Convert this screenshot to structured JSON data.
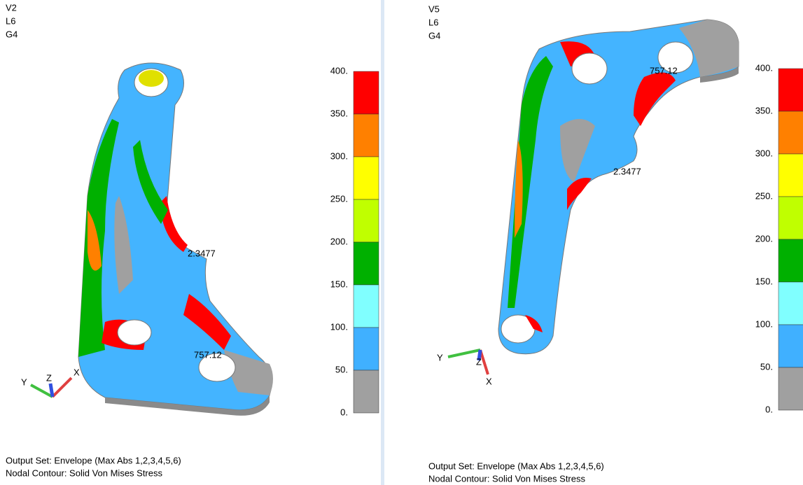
{
  "panels": [
    {
      "header": [
        "V2",
        "L6",
        "G4"
      ],
      "legend": {
        "labels": [
          "400.",
          "350.",
          "300.",
          "250.",
          "200.",
          "150.",
          "100.",
          "50.",
          "0."
        ],
        "colors": [
          "#ff0000",
          "#ff8000",
          "#ffff00",
          "#c0ff00",
          "#00b000",
          "#80ffff",
          "#40b0ff",
          "#a0a0a0"
        ]
      },
      "min_label": "2.3477",
      "max_label": "757.12",
      "triad": [
        "X",
        "Y",
        "Z"
      ],
      "footer": [
        "Output Set: Envelope (Max Abs 1,2,3,4,5,6)",
        "Nodal Contour: Solid Von Mises Stress"
      ]
    },
    {
      "header": [
        "V5",
        "L6",
        "G4"
      ],
      "legend": {
        "labels": [
          "400.",
          "350.",
          "300.",
          "250.",
          "200.",
          "150.",
          "100.",
          "50.",
          "0."
        ],
        "colors": [
          "#ff0000",
          "#ff8000",
          "#ffff00",
          "#c0ff00",
          "#00b000",
          "#80ffff",
          "#40b0ff",
          "#a0a0a0"
        ]
      },
      "min_label": "2.3477",
      "max_label": "757.12",
      "triad": [
        "X",
        "Y",
        "Z"
      ],
      "footer": [
        "Output Set: Envelope (Max Abs 1,2,3,4,5,6)",
        "Nodal Contour: Solid Von Mises Stress"
      ]
    }
  ]
}
